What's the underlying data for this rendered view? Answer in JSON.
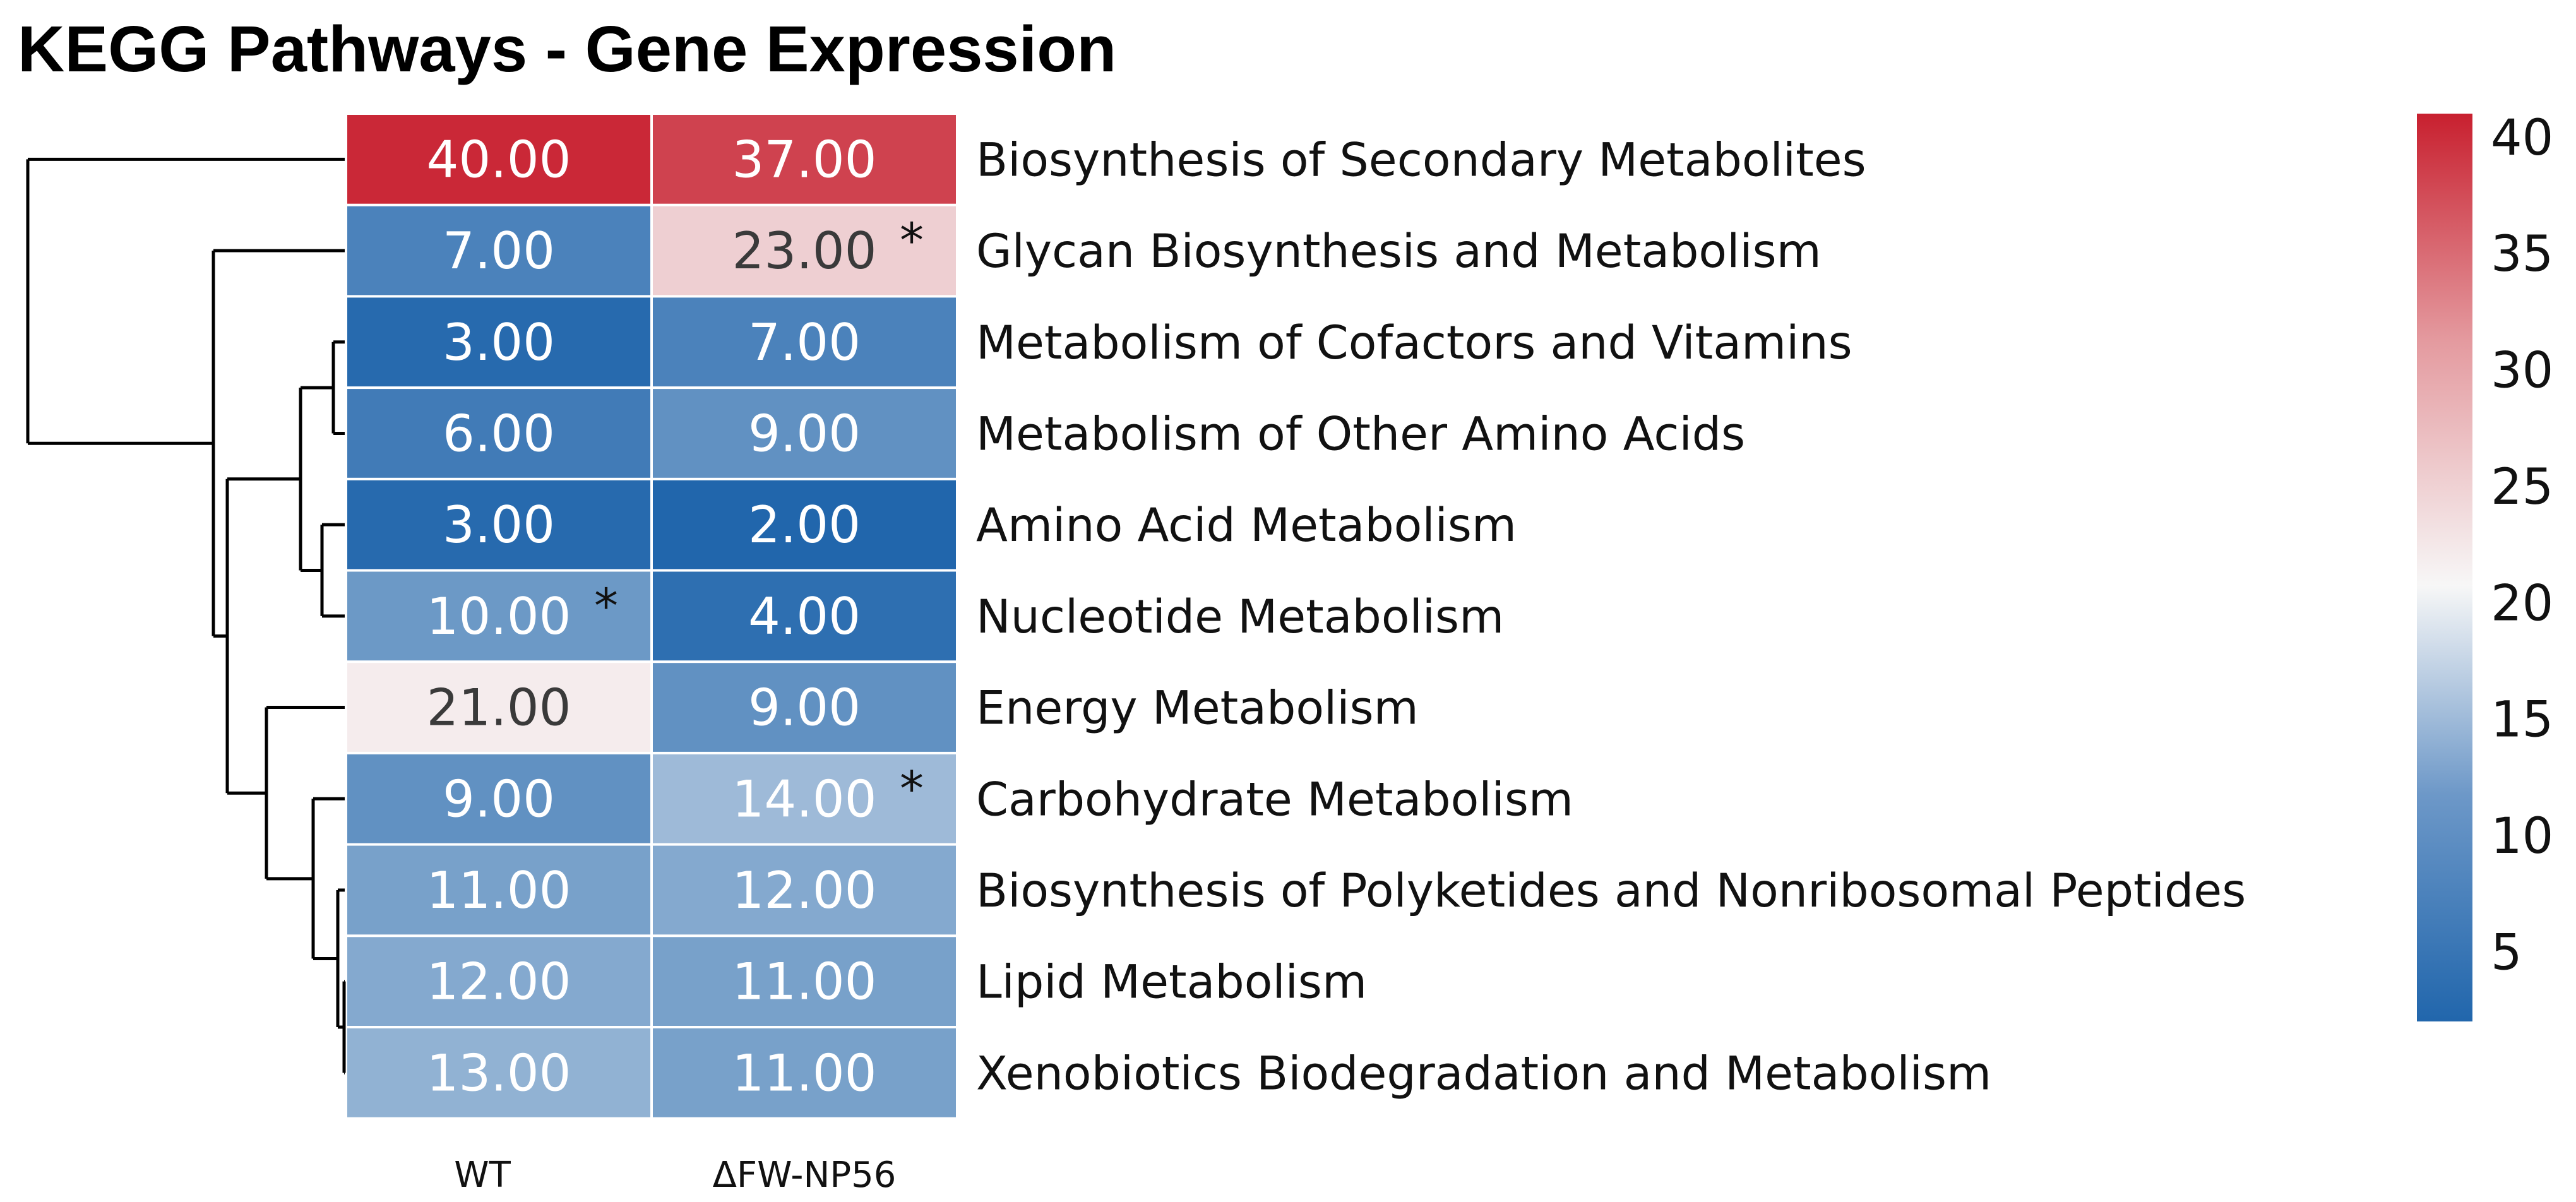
{
  "chart_data": {
    "type": "heatmap",
    "title": "KEGG Pathways - Gene Expression",
    "columns": [
      "WT",
      "ΔFW-NP56"
    ],
    "rows": [
      "Biosynthesis of Secondary Metabolites",
      "Glycan Biosynthesis and Metabolism",
      "Metabolism of Cofactors and Vitamins",
      "Metabolism of Other Amino Acids",
      "Amino Acid Metabolism",
      "Nucleotide Metabolism",
      "Energy Metabolism",
      "Carbohydrate Metabolism",
      "Biosynthesis of Polyketides and Nonribosomal Peptides",
      "Lipid Metabolism",
      "Xenobiotics Biodegradation and Metabolism"
    ],
    "values": [
      [
        40,
        37
      ],
      [
        7,
        23
      ],
      [
        3,
        7
      ],
      [
        6,
        9
      ],
      [
        3,
        2
      ],
      [
        10,
        4
      ],
      [
        21,
        9
      ],
      [
        9,
        14
      ],
      [
        11,
        12
      ],
      [
        12,
        11
      ],
      [
        13,
        11
      ]
    ],
    "value_labels": [
      [
        "40.00",
        "37.00"
      ],
      [
        "7.00",
        "23.00"
      ],
      [
        "3.00",
        "7.00"
      ],
      [
        "6.00",
        "9.00"
      ],
      [
        "3.00",
        "2.00"
      ],
      [
        "10.00",
        "4.00"
      ],
      [
        "21.00",
        "9.00"
      ],
      [
        "9.00",
        "14.00"
      ],
      [
        "11.00",
        "12.00"
      ],
      [
        "12.00",
        "11.00"
      ],
      [
        "13.00",
        "11.00"
      ]
    ],
    "significance_marks": [
      {
        "row": 1,
        "col": 1,
        "symbol": "*"
      },
      {
        "row": 5,
        "col": 0,
        "symbol": "*"
      },
      {
        "row": 7,
        "col": 1,
        "symbol": "*"
      }
    ],
    "colorbar": {
      "ticks": [
        "40",
        "35",
        "30",
        "25",
        "20",
        "15",
        "10",
        "5"
      ],
      "tick_values": [
        40,
        35,
        30,
        25,
        20,
        15,
        10,
        5
      ],
      "range": [
        2,
        41
      ],
      "colors": {
        "low": "#2166ac",
        "mid": "#f7f7f7",
        "high": "#c8202f"
      },
      "placement": "right"
    },
    "row_dendrogram": true
  }
}
